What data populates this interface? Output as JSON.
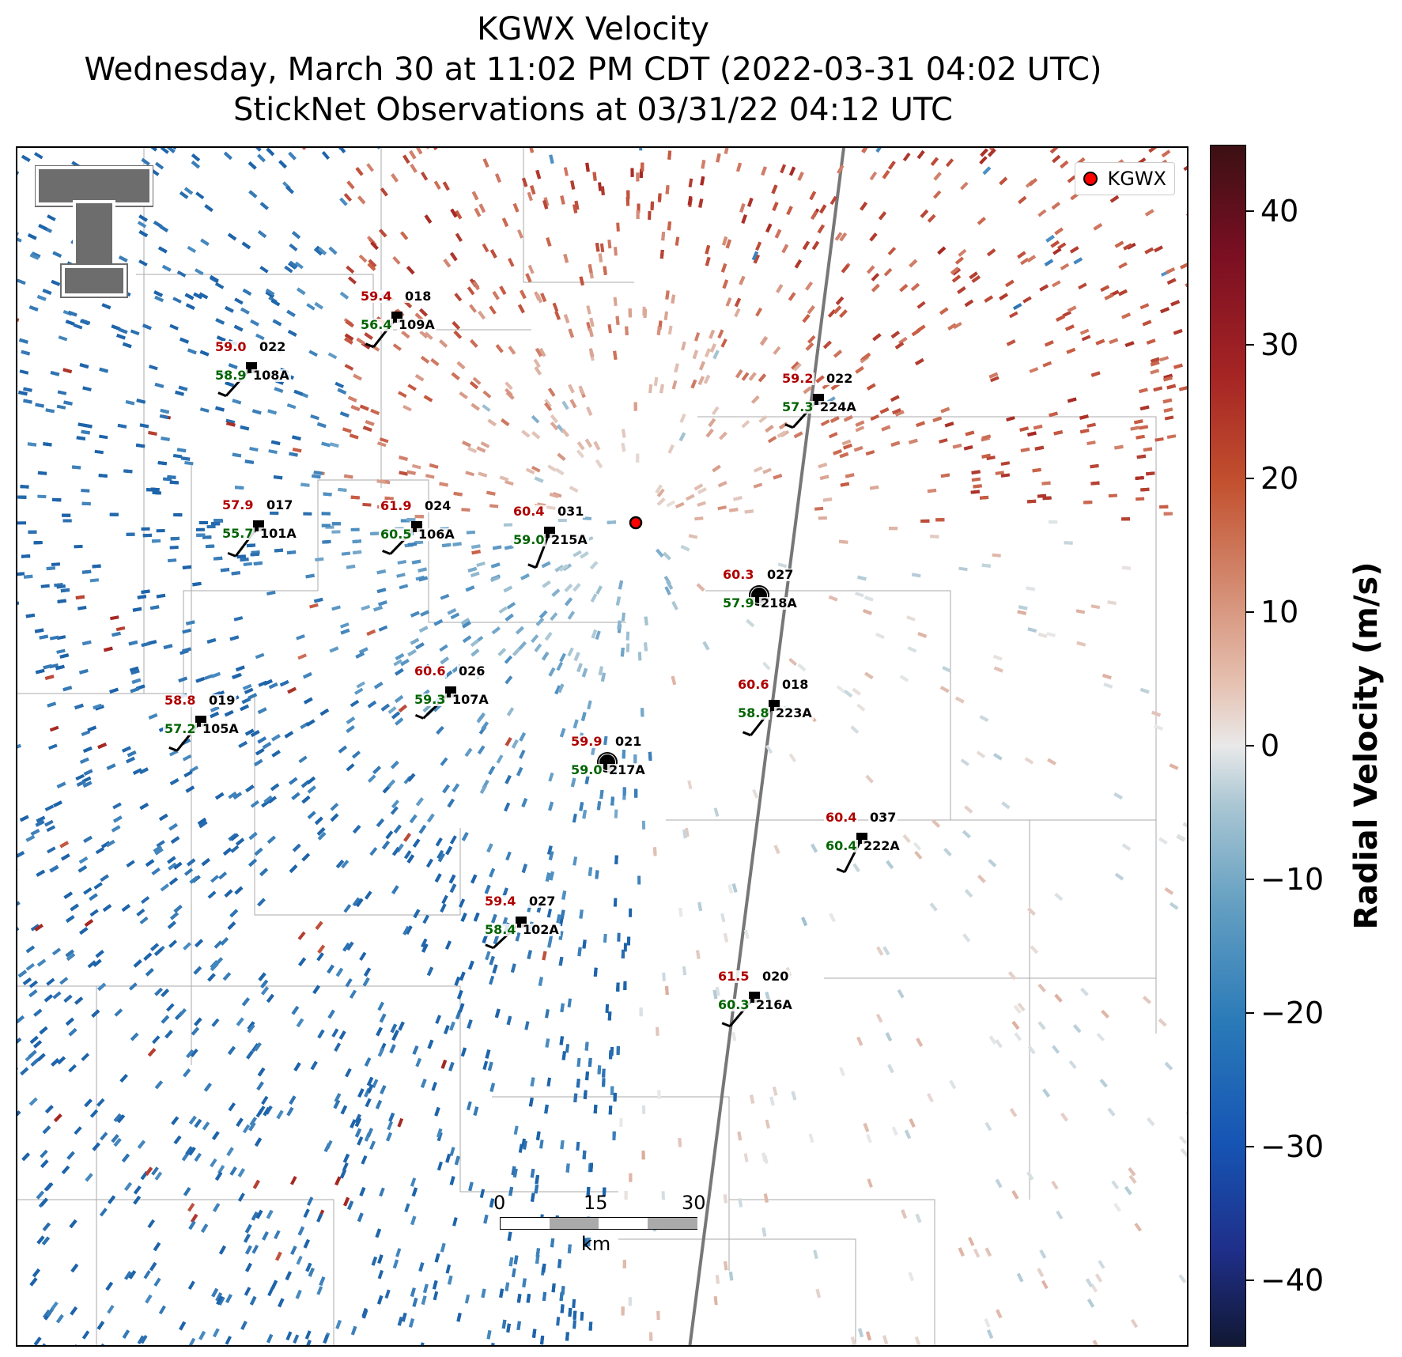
{
  "title": {
    "line1": "KGWX Velocity",
    "line2": "Wednesday, March 30 at 11:02 PM CDT (2022-03-31 04:02 UTC)",
    "line3": "StickNet Observations at 03/31/22 04:12 UTC"
  },
  "legend": {
    "label": "KGWX",
    "marker_color": "#ff0000"
  },
  "radar": {
    "name": "KGWX"
  },
  "colorbar": {
    "title": "Radial Velocity (m/s)",
    "min": -45,
    "max": 45,
    "ticks": [
      "40",
      "30",
      "20",
      "10",
      "0",
      "−10",
      "−20",
      "−30",
      "−40"
    ],
    "tick_values": [
      40,
      30,
      20,
      10,
      0,
      -10,
      -20,
      -30,
      -40
    ],
    "colors": {
      "negative": "#2a7ab8",
      "zero": "#e9e9e9",
      "positive": "#c2502e"
    }
  },
  "scalebar": {
    "ticks": [
      "0",
      "15",
      "30"
    ],
    "unit": "km"
  },
  "stations": [
    {
      "id": "109A",
      "temp": "59.4",
      "dew": "56.4",
      "dir": "018"
    },
    {
      "id": "108A",
      "temp": "59.0",
      "dew": "58.9",
      "dir": "022"
    },
    {
      "id": "224A",
      "temp": "59.2",
      "dew": "57.3",
      "dir": "022"
    },
    {
      "id": "101A",
      "temp": "57.9",
      "dew": "55.7",
      "dir": "017"
    },
    {
      "id": "106A",
      "temp": "61.9",
      "dew": "60.5",
      "dir": "024"
    },
    {
      "id": "215A",
      "temp": "60.4",
      "dew": "59.0",
      "dir": "031"
    },
    {
      "id": "218A",
      "temp": "60.3",
      "dew": "57.9",
      "dir": "027"
    },
    {
      "id": "107A",
      "temp": "60.6",
      "dew": "59.3",
      "dir": "026"
    },
    {
      "id": "223A",
      "temp": "60.6",
      "dew": "58.8",
      "dir": "018"
    },
    {
      "id": "105A",
      "temp": "58.8",
      "dew": "57.2",
      "dir": "019"
    },
    {
      "id": "217A",
      "temp": "59.9",
      "dew": "59.0",
      "dir": "021"
    },
    {
      "id": "222A",
      "temp": "60.4",
      "dew": "60.4",
      "dir": "037"
    },
    {
      "id": "102A",
      "temp": "59.4",
      "dew": "58.4",
      "dir": "027"
    },
    {
      "id": "216A",
      "temp": "61.5",
      "dew": "60.3",
      "dir": "020"
    }
  ]
}
